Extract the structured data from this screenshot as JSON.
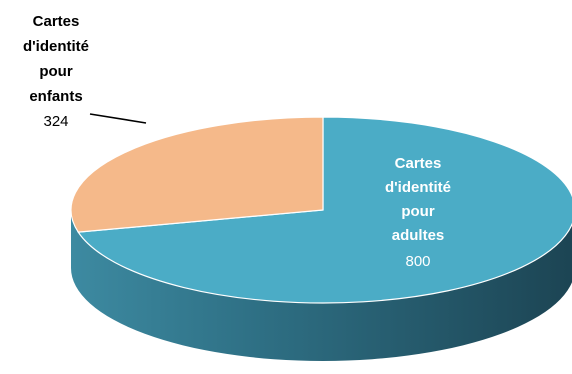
{
  "chart_data": {
    "type": "pie",
    "slices": [
      {
        "label_lines": [
          "Cartes",
          "d'identité",
          "pour",
          "adultes"
        ],
        "value": 800,
        "value_label": "800",
        "color": "#4bacc6",
        "side_color": "#2e6f84",
        "label_color": "#ffffff"
      },
      {
        "label_lines": [
          "Cartes",
          "d'identité",
          "pour",
          "enfants"
        ],
        "value": 324,
        "value_label": "324",
        "color": "#f5b98a",
        "side_color": "#c98e62",
        "label_color": "#000000"
      }
    ],
    "style": "3d",
    "start_angle_deg": 0,
    "direction": "clockwise",
    "legend": "none"
  }
}
